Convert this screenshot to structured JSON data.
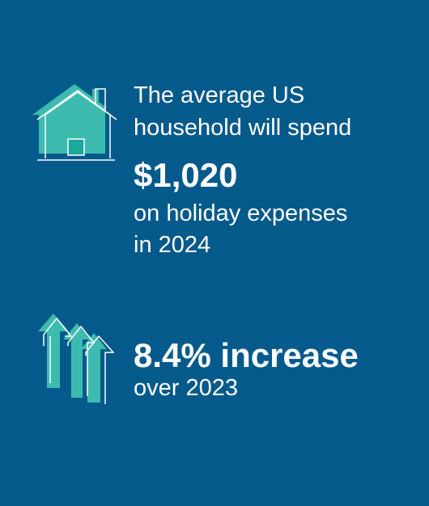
{
  "stats": [
    {
      "lead_lines": [
        "The average US",
        "household will spend"
      ],
      "figure": "$1,020",
      "note_lines": [
        "on holiday expenses",
        "in 2024"
      ]
    },
    {
      "figure": "8.4% increase",
      "note_lines": [
        "over 2023"
      ]
    }
  ]
}
